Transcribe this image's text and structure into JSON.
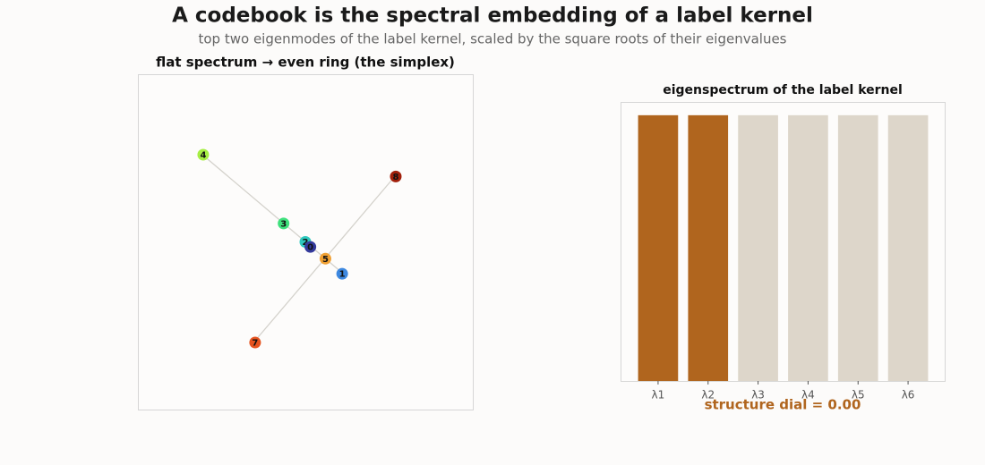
{
  "title": "A codebook is the spectral embedding of a label kernel",
  "subtitle": "top two eigenmodes of the label kernel, scaled by the square roots of their eigenvalues",
  "annotation": "structure dial = 0.00",
  "chart_data": [
    {
      "type": "scatter",
      "title": "flat spectrum → even ring (the simplex)",
      "labels": [
        "4",
        "3",
        "2",
        "0",
        "5",
        "1",
        "8",
        "7"
      ],
      "x": [
        -0.61,
        -0.13,
        0.0,
        0.03,
        0.12,
        0.22,
        0.54,
        -0.3
      ],
      "values": [
        0.52,
        0.11,
        0.0,
        -0.03,
        -0.1,
        -0.19,
        0.39,
        -0.6
      ],
      "colors": [
        "#a6ee44",
        "#3ee07c",
        "#2ec9be",
        "#343a9c",
        "#f0a032",
        "#3d88e0",
        "#a11f0a",
        "#e5531f"
      ],
      "xlim": [
        -1,
        1
      ],
      "ylim": [
        -1,
        1
      ]
    },
    {
      "type": "bar",
      "title": "eigenspectrum of the label kernel",
      "categories": [
        "λ1",
        "λ2",
        "λ3",
        "λ4",
        "λ5",
        "λ6"
      ],
      "values": [
        1,
        1,
        1,
        1,
        1,
        1
      ],
      "colors": [
        "#b0651e",
        "#b0651e",
        "#ddd6ca",
        "#ddd6ca",
        "#ddd6ca",
        "#ddd6ca"
      ],
      "ylim": [
        0,
        1.05
      ]
    }
  ]
}
